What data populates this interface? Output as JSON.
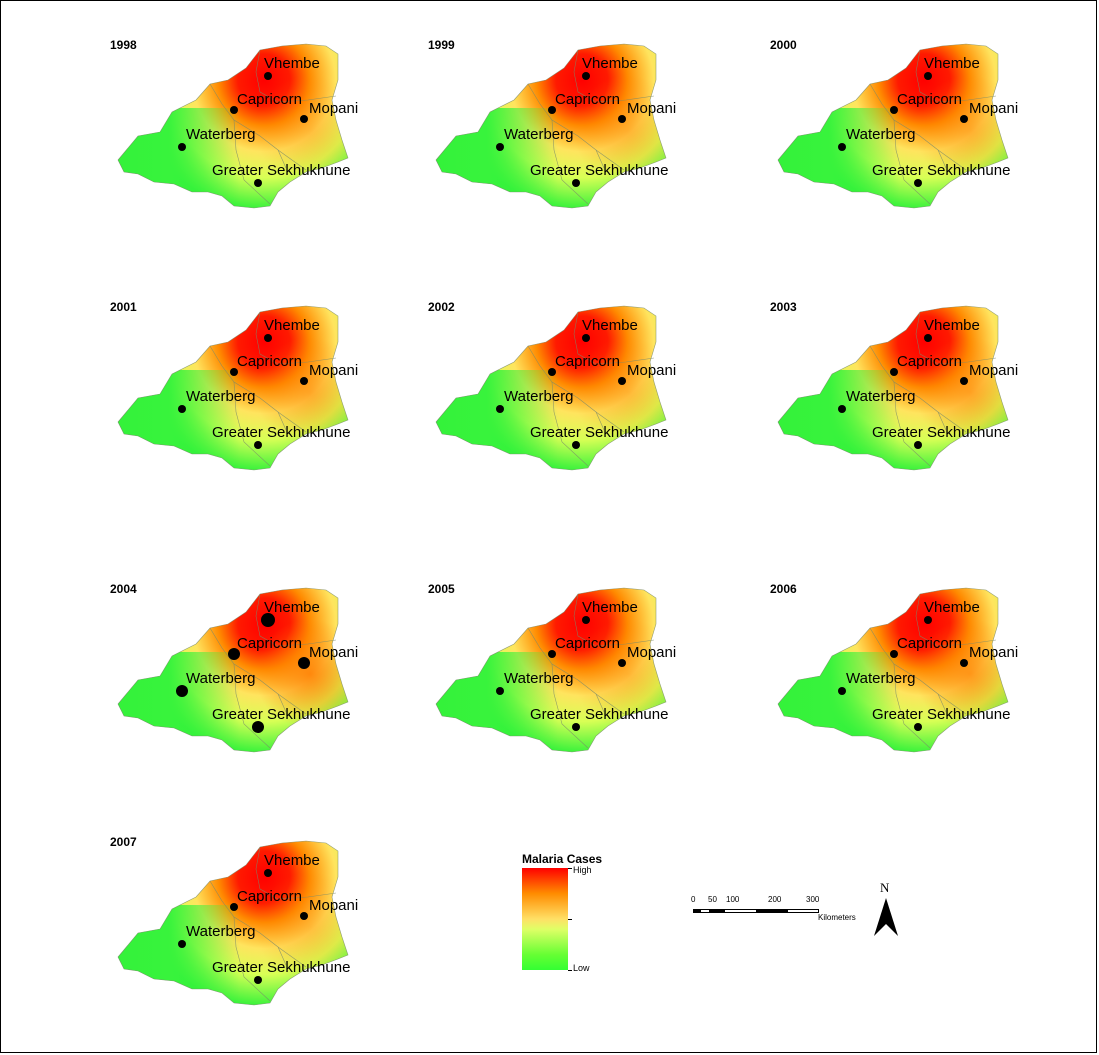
{
  "years": [
    "1998",
    "1999",
    "2000",
    "2001",
    "2002",
    "2003",
    "2004",
    "2005",
    "2006",
    "2007"
  ],
  "districts": [
    "Vhembe",
    "Capricorn",
    "Mopani",
    "Waterberg",
    "Greater Sekhukhune"
  ],
  "legend": {
    "title": "Malaria Cases",
    "high": "High",
    "low": "Low",
    "colors": [
      "#ff0000",
      "#ff8c00",
      "#ffe066",
      "#66ff33",
      "#33ff33"
    ]
  },
  "scale": {
    "ticks": [
      "0",
      "50",
      "100",
      "200",
      "300"
    ],
    "unit": "Kilometers"
  },
  "north_arrow": "N"
}
